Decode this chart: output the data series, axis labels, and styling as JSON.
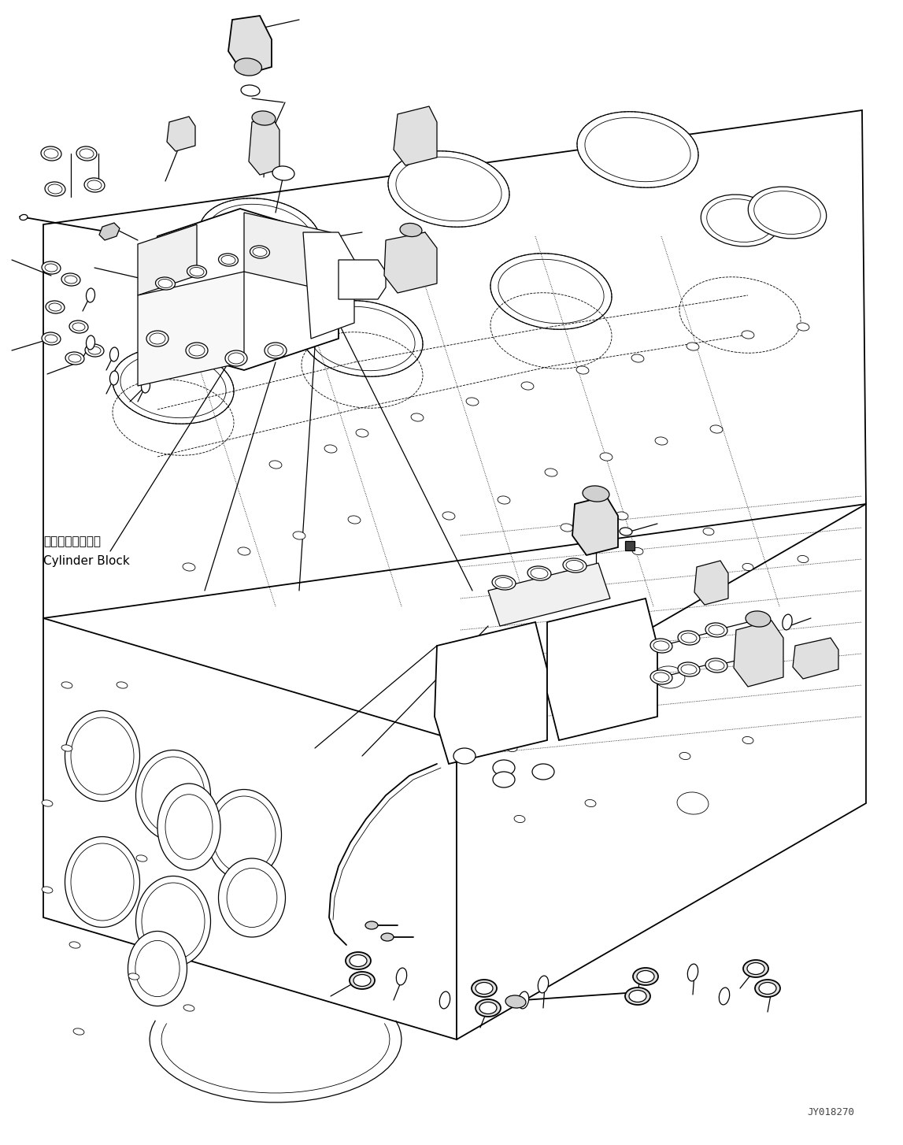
{
  "background_color": "#ffffff",
  "line_color": "#000000",
  "fig_width": 11.47,
  "fig_height": 14.54,
  "dpi": 100,
  "label_jp": "シリンダブロック",
  "label_en": "Cylinder Block",
  "watermark": "JY018270"
}
